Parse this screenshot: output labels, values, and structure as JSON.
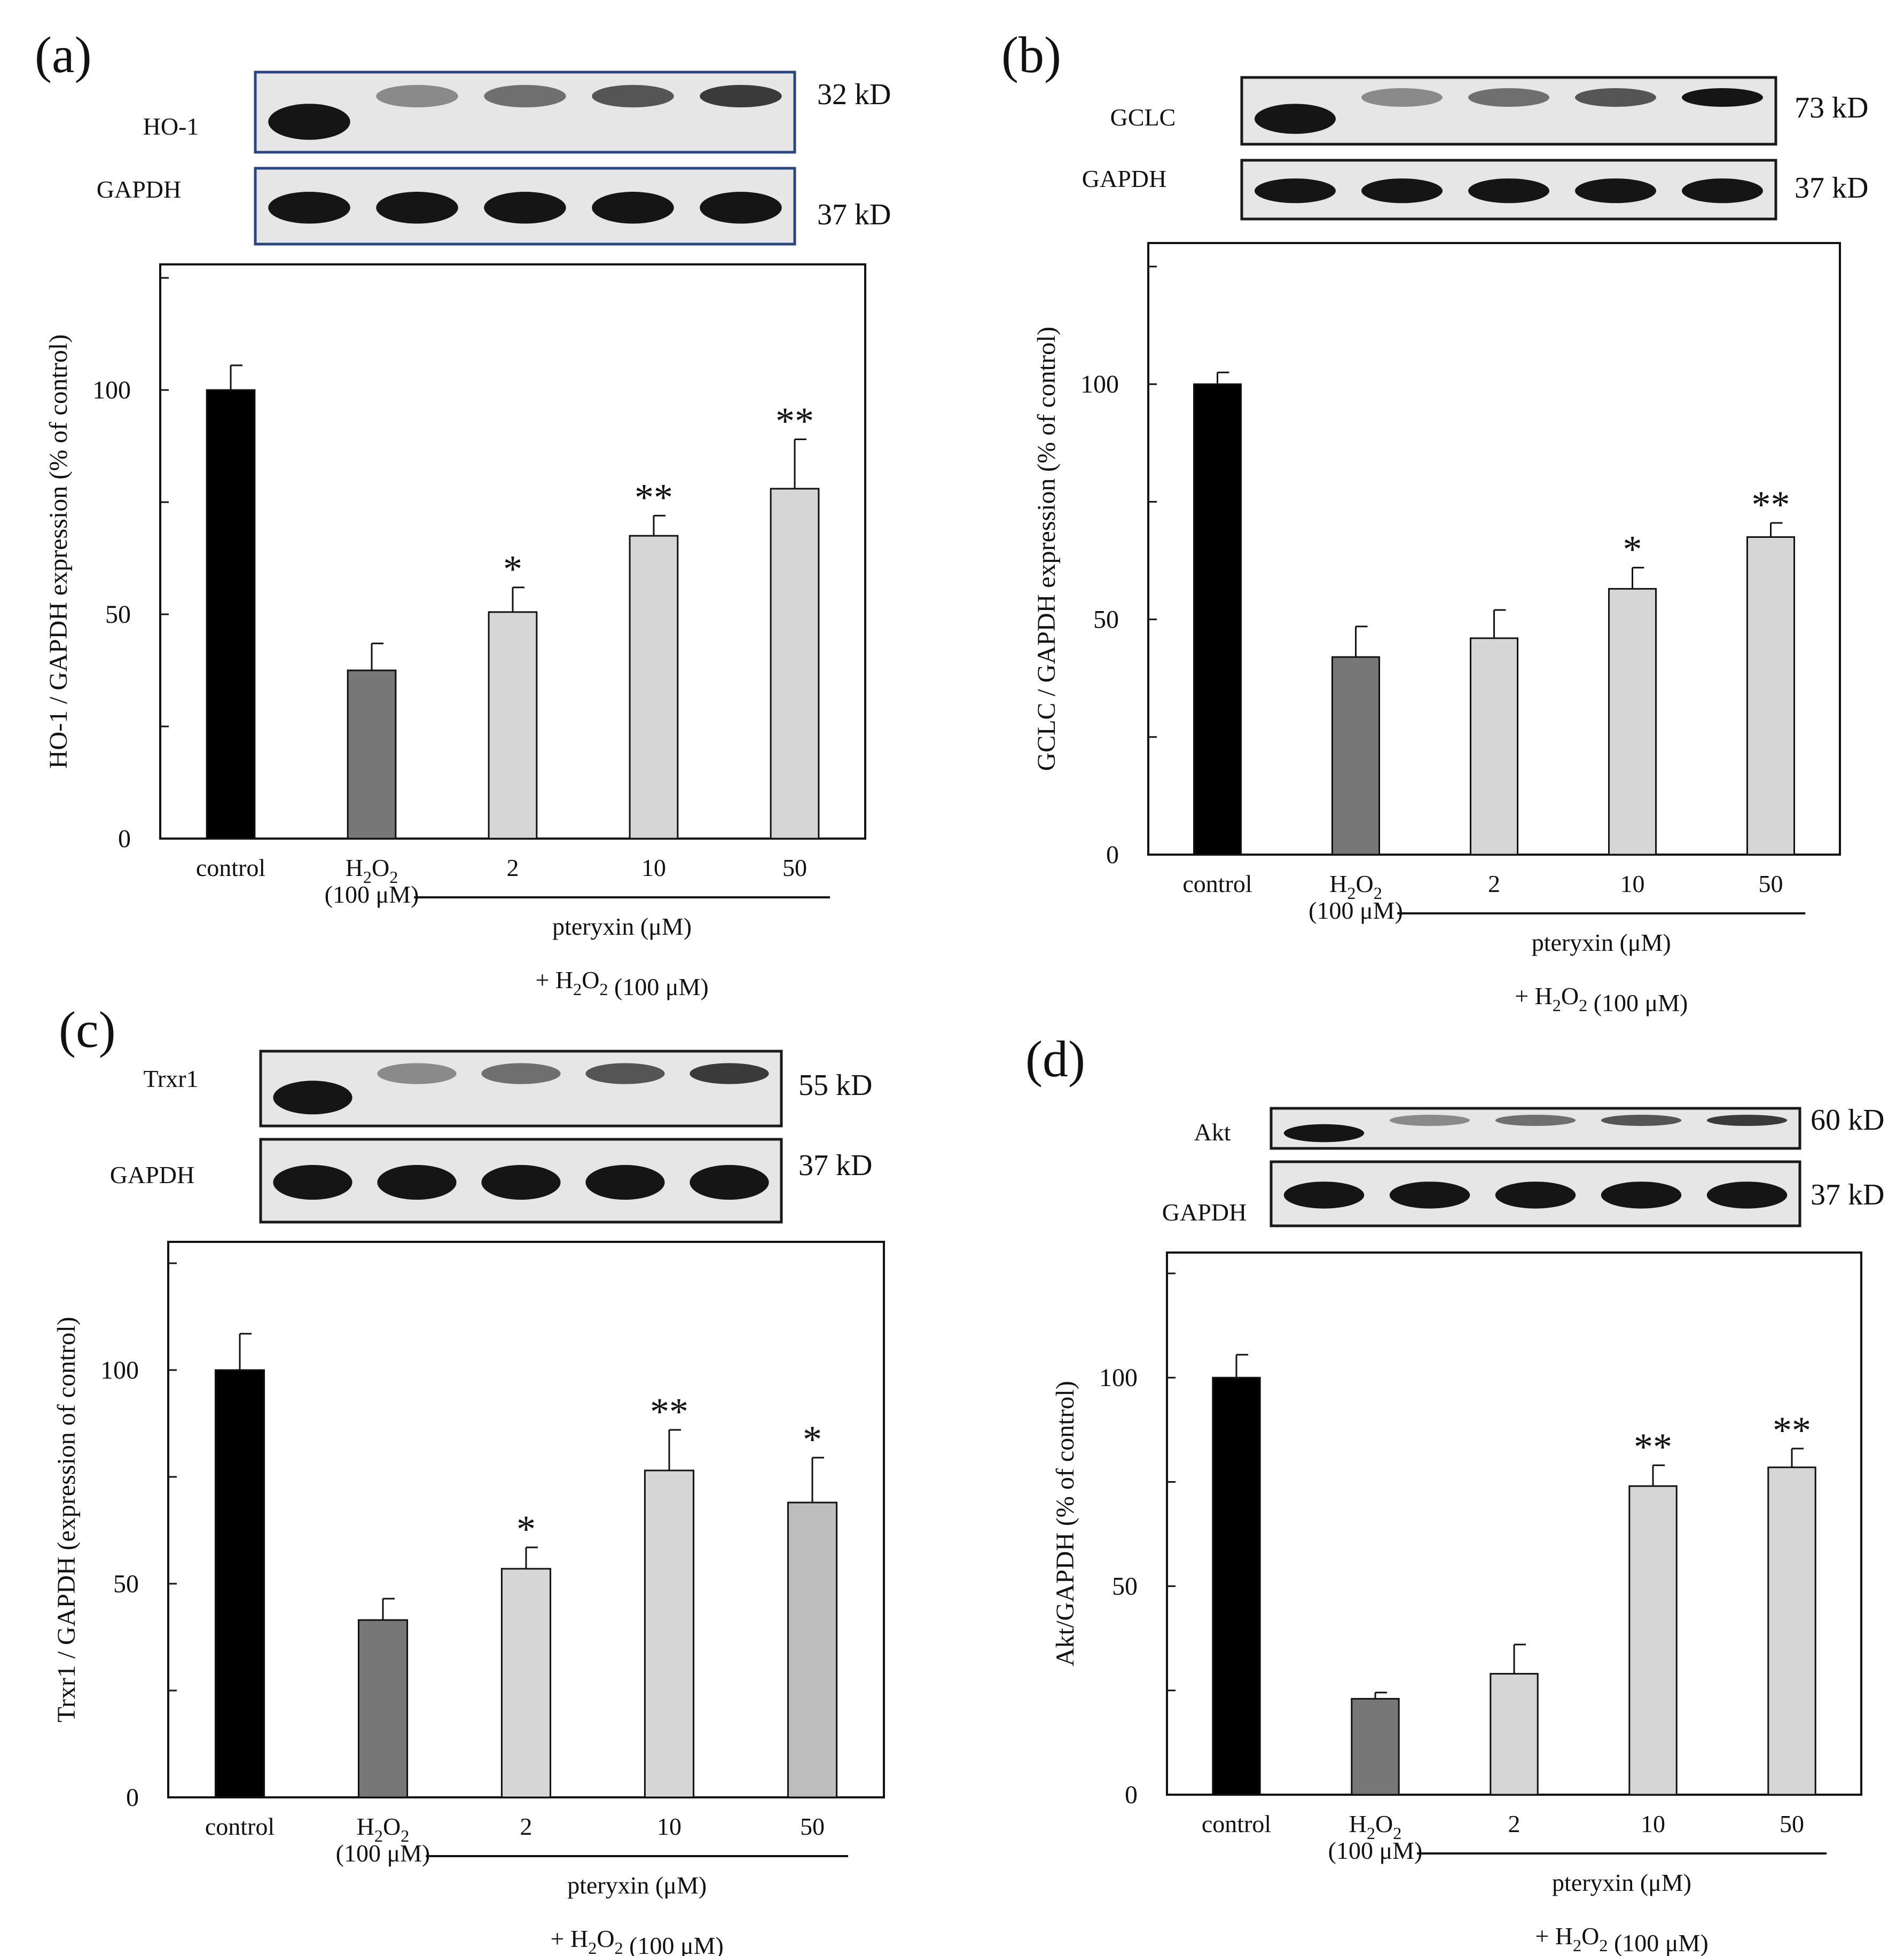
{
  "colors": {
    "control": "#000000",
    "h2o2": "#777777",
    "treated": "#d6d6d6",
    "treated_alt": "#bdbdbd",
    "axis": "#111111",
    "blot_border_dark": "#1a1a1a",
    "blot_border_blue": "#2a4580"
  },
  "chart_data": [
    {
      "panel": "(a)",
      "type": "bar",
      "categories": [
        "control",
        "H2O2",
        "2",
        "10",
        "50"
      ],
      "category_subtext": [
        "",
        "(100 μM)",
        "",
        "",
        ""
      ],
      "values": [
        100,
        37.5,
        50.5,
        67.5,
        78
      ],
      "errors": [
        5.5,
        6,
        5.5,
        4.5,
        11
      ],
      "significance": [
        "",
        "",
        "*",
        "**",
        "**"
      ],
      "fill_keys": [
        "control",
        "h2o2",
        "treated",
        "treated",
        "treated"
      ],
      "ylabel": "HO-1 / GAPDH expression (% of control)",
      "yticks": [
        0,
        50,
        100
      ],
      "ylim": [
        0,
        128
      ],
      "group_label": "pteryxin  (μM)",
      "footnote": "+ H2O2  (100 μM)",
      "blots": [
        {
          "protein": "HO-1",
          "size": "32 kD"
        },
        {
          "protein": "GAPDH",
          "size": "37 kD"
        }
      ]
    },
    {
      "panel": "(b)",
      "type": "bar",
      "categories": [
        "control",
        "H2O2",
        "2",
        "10",
        "50"
      ],
      "category_subtext": [
        "",
        "(100 μM)",
        "",
        "",
        ""
      ],
      "values": [
        100,
        42,
        46,
        56.5,
        67.5
      ],
      "errors": [
        2.5,
        6.5,
        6,
        4.5,
        3
      ],
      "significance": [
        "",
        "",
        "",
        "*",
        "**"
      ],
      "fill_keys": [
        "control",
        "h2o2",
        "treated",
        "treated",
        "treated"
      ],
      "ylabel": "GCLC / GAPDH expression (% of control)",
      "yticks": [
        0,
        50,
        100
      ],
      "ylim": [
        0,
        130
      ],
      "group_label": "pteryxin  (μM)",
      "footnote": "+ H2O2  (100 μM)",
      "blots": [
        {
          "protein": "GCLC",
          "size": "73 kD"
        },
        {
          "protein": "GAPDH",
          "size": "37 kD"
        }
      ]
    },
    {
      "panel": "(c)",
      "type": "bar",
      "categories": [
        "control",
        "H2O2",
        "2",
        "10",
        "50"
      ],
      "category_subtext": [
        "",
        "(100 μM)",
        "",
        "",
        ""
      ],
      "values": [
        100,
        41.5,
        53.5,
        76.5,
        69
      ],
      "errors": [
        8.5,
        5,
        5,
        9.5,
        10.5
      ],
      "significance": [
        "",
        "",
        "*",
        "**",
        "*"
      ],
      "fill_keys": [
        "control",
        "h2o2",
        "treated",
        "treated",
        "treated_alt"
      ],
      "ylabel": "Trxr1 / GAPDH (expression of control)",
      "yticks": [
        0,
        50,
        100
      ],
      "ylim": [
        0,
        130
      ],
      "group_label": "pteryxin  (μM)",
      "footnote": "+ H2O2  (100 μM)",
      "blots": [
        {
          "protein": "Trxr1",
          "size": "55 kD"
        },
        {
          "protein": "GAPDH",
          "size": "37 kD"
        }
      ]
    },
    {
      "panel": "(d)",
      "type": "bar",
      "categories": [
        "control",
        "H2O2",
        "2",
        "10",
        "50"
      ],
      "category_subtext": [
        "",
        "(100 μM)",
        "",
        "",
        ""
      ],
      "values": [
        100,
        23,
        29,
        74,
        78.5
      ],
      "errors": [
        5.5,
        1.5,
        7,
        5,
        4.5
      ],
      "significance": [
        "",
        "",
        "",
        "**",
        "**"
      ],
      "fill_keys": [
        "control",
        "h2o2",
        "treated",
        "treated",
        "treated"
      ],
      "ylabel": "Akt/GAPDH (% of control)",
      "yticks": [
        0,
        50,
        100
      ],
      "ylim": [
        0,
        130
      ],
      "group_label": "pteryxin  (μM)",
      "footnote": "+ H2O2  (100 μM)",
      "blots": [
        {
          "protein": "Akt",
          "size": "60 kD"
        },
        {
          "protein": "GAPDH",
          "size": "37 kD"
        }
      ]
    }
  ]
}
